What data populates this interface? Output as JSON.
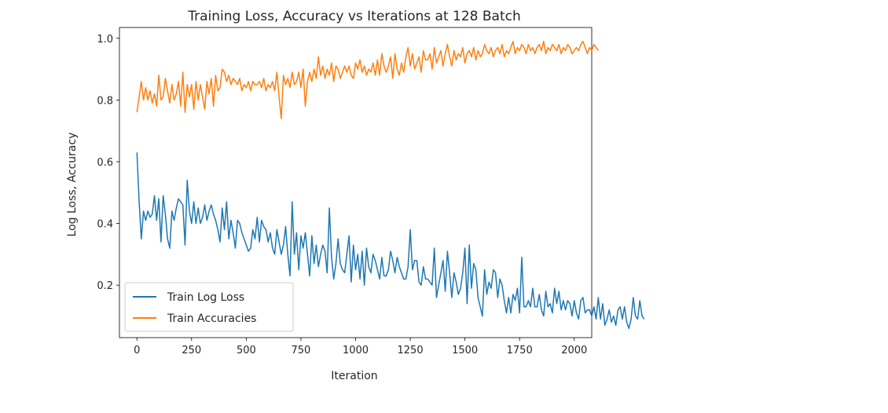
{
  "chart_data": {
    "type": "line",
    "title": "Training Loss, Accuracy vs Iterations at 128 Batch",
    "xlabel": "Iteration",
    "ylabel": "Log Loss, Accuracy",
    "xlim": [
      -80,
      2080
    ],
    "ylim": [
      0.03,
      1.035
    ],
    "xticks": [
      0,
      250,
      500,
      750,
      1000,
      1250,
      1500,
      1750,
      2000
    ],
    "yticks": [
      0.2,
      0.4,
      0.6,
      0.8,
      1.0
    ],
    "ytick_labels": [
      "0.2",
      "0.4",
      "0.6",
      "0.8",
      "1.0"
    ],
    "grid": false,
    "legend": "lower-left",
    "x_step": 10,
    "series": [
      {
        "name": "Train Log Loss",
        "color": "#1f77b4",
        "values": [
          0.63,
          0.47,
          0.35,
          0.44,
          0.41,
          0.44,
          0.42,
          0.43,
          0.49,
          0.41,
          0.48,
          0.34,
          0.49,
          0.43,
          0.35,
          0.32,
          0.44,
          0.41,
          0.45,
          0.48,
          0.47,
          0.46,
          0.33,
          0.54,
          0.44,
          0.4,
          0.47,
          0.4,
          0.45,
          0.4,
          0.42,
          0.46,
          0.41,
          0.44,
          0.46,
          0.43,
          0.41,
          0.38,
          0.34,
          0.45,
          0.38,
          0.47,
          0.35,
          0.41,
          0.37,
          0.32,
          0.41,
          0.4,
          0.37,
          0.35,
          0.33,
          0.31,
          0.32,
          0.38,
          0.35,
          0.42,
          0.34,
          0.41,
          0.39,
          0.38,
          0.34,
          0.37,
          0.32,
          0.3,
          0.38,
          0.34,
          0.3,
          0.33,
          0.39,
          0.3,
          0.23,
          0.47,
          0.3,
          0.37,
          0.25,
          0.36,
          0.32,
          0.37,
          0.3,
          0.23,
          0.36,
          0.27,
          0.33,
          0.26,
          0.3,
          0.33,
          0.31,
          0.24,
          0.45,
          0.29,
          0.22,
          0.27,
          0.35,
          0.27,
          0.25,
          0.24,
          0.3,
          0.36,
          0.21,
          0.33,
          0.25,
          0.3,
          0.22,
          0.31,
          0.2,
          0.32,
          0.26,
          0.24,
          0.3,
          0.28,
          0.25,
          0.22,
          0.29,
          0.23,
          0.23,
          0.25,
          0.31,
          0.28,
          0.24,
          0.29,
          0.26,
          0.24,
          0.22,
          0.22,
          0.26,
          0.38,
          0.25,
          0.28,
          0.28,
          0.21,
          0.2,
          0.26,
          0.22,
          0.22,
          0.21,
          0.2,
          0.32,
          0.16,
          0.2,
          0.24,
          0.28,
          0.18,
          0.31,
          0.24,
          0.16,
          0.24,
          0.21,
          0.17,
          0.19,
          0.24,
          0.32,
          0.14,
          0.33,
          0.19,
          0.27,
          0.25,
          0.16,
          0.13,
          0.1,
          0.25,
          0.17,
          0.21,
          0.19,
          0.25,
          0.24,
          0.16,
          0.22,
          0.2,
          0.15,
          0.11,
          0.16,
          0.11,
          0.17,
          0.15,
          0.19,
          0.11,
          0.29,
          0.13,
          0.13,
          0.15,
          0.13,
          0.19,
          0.13,
          0.13,
          0.17,
          0.12,
          0.1,
          0.18,
          0.13,
          0.14,
          0.11,
          0.19,
          0.14,
          0.18,
          0.12,
          0.15,
          0.12,
          0.15,
          0.14,
          0.1,
          0.15,
          0.11,
          0.09,
          0.15,
          0.16,
          0.11,
          0.12,
          0.12,
          0.1,
          0.13,
          0.09,
          0.16,
          0.09,
          0.14,
          0.07,
          0.09,
          0.12,
          0.08,
          0.1,
          0.07,
          0.12,
          0.13,
          0.09,
          0.13,
          0.08,
          0.06,
          0.09,
          0.16,
          0.1,
          0.09,
          0.15,
          0.1,
          0.09
        ]
      },
      {
        "name": "Train Accuracies",
        "color": "#ff7f0e",
        "values": [
          0.76,
          0.81,
          0.86,
          0.8,
          0.84,
          0.8,
          0.83,
          0.79,
          0.82,
          0.78,
          0.88,
          0.8,
          0.81,
          0.87,
          0.83,
          0.79,
          0.85,
          0.8,
          0.82,
          0.86,
          0.78,
          0.89,
          0.76,
          0.85,
          0.81,
          0.85,
          0.77,
          0.86,
          0.8,
          0.85,
          0.81,
          0.77,
          0.86,
          0.82,
          0.87,
          0.78,
          0.88,
          0.83,
          0.84,
          0.9,
          0.89,
          0.86,
          0.88,
          0.85,
          0.87,
          0.86,
          0.85,
          0.87,
          0.83,
          0.85,
          0.84,
          0.86,
          0.83,
          0.86,
          0.85,
          0.85,
          0.86,
          0.84,
          0.87,
          0.83,
          0.85,
          0.84,
          0.86,
          0.83,
          0.89,
          0.81,
          0.74,
          0.88,
          0.85,
          0.87,
          0.84,
          0.89,
          0.85,
          0.86,
          0.89,
          0.84,
          0.9,
          0.78,
          0.86,
          0.89,
          0.86,
          0.9,
          0.87,
          0.94,
          0.88,
          0.91,
          0.87,
          0.9,
          0.88,
          0.92,
          0.86,
          0.91,
          0.9,
          0.87,
          0.89,
          0.91,
          0.89,
          0.91,
          0.88,
          0.87,
          0.92,
          0.9,
          0.93,
          0.89,
          0.91,
          0.88,
          0.9,
          0.89,
          0.92,
          0.88,
          0.93,
          0.88,
          0.95,
          0.91,
          0.89,
          0.91,
          0.94,
          0.87,
          0.95,
          0.9,
          0.88,
          0.92,
          0.89,
          0.94,
          0.97,
          0.91,
          0.95,
          0.9,
          0.92,
          0.94,
          0.89,
          0.96,
          0.93,
          0.93,
          0.95,
          0.9,
          0.97,
          0.92,
          0.94,
          0.96,
          0.91,
          0.95,
          0.98,
          0.94,
          0.91,
          0.96,
          0.93,
          0.95,
          0.94,
          0.97,
          0.92,
          0.95,
          0.96,
          0.94,
          0.97,
          0.93,
          0.96,
          0.94,
          0.95,
          0.98,
          0.96,
          0.95,
          0.97,
          0.94,
          0.96,
          0.97,
          0.95,
          0.98,
          0.94,
          0.96,
          0.95,
          0.97,
          0.99,
          0.95,
          0.97,
          0.96,
          0.98,
          0.97,
          0.95,
          0.98,
          0.96,
          0.97,
          0.95,
          0.97,
          0.98,
          0.96,
          0.99,
          0.95,
          0.97,
          0.96,
          0.98,
          0.97,
          0.96,
          0.98,
          0.95,
          0.97,
          0.96,
          0.98,
          0.97,
          0.95,
          0.96,
          0.97,
          0.96,
          0.98,
          0.99,
          0.97,
          0.95,
          0.97,
          0.96,
          0.98,
          0.97,
          0.96
        ]
      }
    ]
  }
}
